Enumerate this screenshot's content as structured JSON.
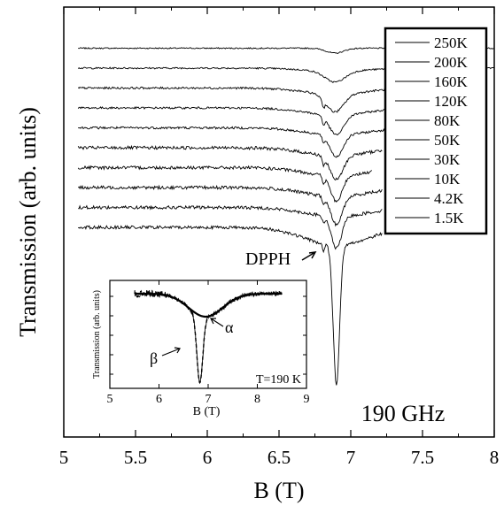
{
  "chart_data": {
    "type": "line",
    "xlabel": "B (T)",
    "ylabel": "Transmission (arb. units)",
    "xlim": [
      5,
      8
    ],
    "x_ticks": [
      "5",
      "5.5",
      "6",
      "6.5",
      "7",
      "7.5",
      "8"
    ],
    "frequency_label": "190 GHz",
    "dpph_label": "DPPH",
    "legend_placement": "top-right",
    "series": [
      {
        "name": "250K",
        "x_range": [
          5.1,
          8.0
        ],
        "baseline_offset": 10.0,
        "dip_center": 6.89,
        "dip_depth": 0.25,
        "dip_width": 0.06,
        "wide_depth": 0.0,
        "noise": 0.03,
        "dpph": false
      },
      {
        "name": "200K",
        "x_range": [
          5.1,
          8.0
        ],
        "baseline_offset": 9.0,
        "dip_center": 6.89,
        "dip_depth": 0.55,
        "dip_width": 0.07,
        "wide_depth": 0.15,
        "noise": 0.04,
        "dpph": false
      },
      {
        "name": "160K",
        "x_range": [
          5.1,
          7.6
        ],
        "baseline_offset": 8.0,
        "dip_center": 6.89,
        "dip_depth": 0.9,
        "dip_width": 0.06,
        "wide_depth": 0.3,
        "noise": 0.05,
        "dpph": true
      },
      {
        "name": "120K",
        "x_range": [
          5.1,
          7.35
        ],
        "baseline_offset": 7.0,
        "dip_center": 6.9,
        "dip_depth": 1.0,
        "dip_width": 0.05,
        "wide_depth": 0.35,
        "noise": 0.05,
        "dpph": true
      },
      {
        "name": "80K",
        "x_range": [
          5.1,
          7.35
        ],
        "baseline_offset": 6.0,
        "dip_center": 6.9,
        "dip_depth": 1.1,
        "dip_width": 0.045,
        "wide_depth": 0.35,
        "noise": 0.06,
        "dpph": true
      },
      {
        "name": "50K",
        "x_range": [
          5.1,
          7.22
        ],
        "baseline_offset": 5.0,
        "dip_center": 6.9,
        "dip_depth": 1.2,
        "dip_width": 0.045,
        "wide_depth": 0.4,
        "noise": 0.08,
        "dpph": true
      },
      {
        "name": "30K",
        "x_range": [
          5.1,
          7.15
        ],
        "baseline_offset": 4.0,
        "dip_center": 6.9,
        "dip_depth": 1.3,
        "dip_width": 0.04,
        "wide_depth": 0.4,
        "noise": 0.08,
        "dpph": true
      },
      {
        "name": "10K",
        "x_range": [
          5.1,
          7.22
        ],
        "baseline_offset": 3.0,
        "dip_center": 6.9,
        "dip_depth": 1.4,
        "dip_width": 0.04,
        "wide_depth": 0.45,
        "noise": 0.08,
        "dpph": true
      },
      {
        "name": "4.2K",
        "x_range": [
          5.1,
          7.22
        ],
        "baseline_offset": 2.0,
        "dip_center": 6.9,
        "dip_depth": 1.6,
        "dip_width": 0.035,
        "wide_depth": 0.45,
        "noise": 0.08,
        "dpph": true
      },
      {
        "name": "1.5K",
        "x_range": [
          5.1,
          7.22
        ],
        "baseline_offset": 1.0,
        "dip_center": 6.9,
        "dip_depth": 7.0,
        "dip_width": 0.022,
        "wide_depth": 0.9,
        "noise": 0.08,
        "dpph": true
      }
    ],
    "inset": {
      "title": "T=190 K",
      "xlabel": "B (T)",
      "ylabel": "Transmission (arb. units)",
      "xlim": [
        5,
        9
      ],
      "x_ticks": [
        "5",
        "6",
        "7",
        "8",
        "9"
      ],
      "alpha_label": "α",
      "beta_label": "β",
      "components": {
        "alpha": {
          "center": 6.95,
          "width": 0.35
        },
        "beta": {
          "center": 6.83,
          "width": 0.06
        }
      }
    }
  }
}
